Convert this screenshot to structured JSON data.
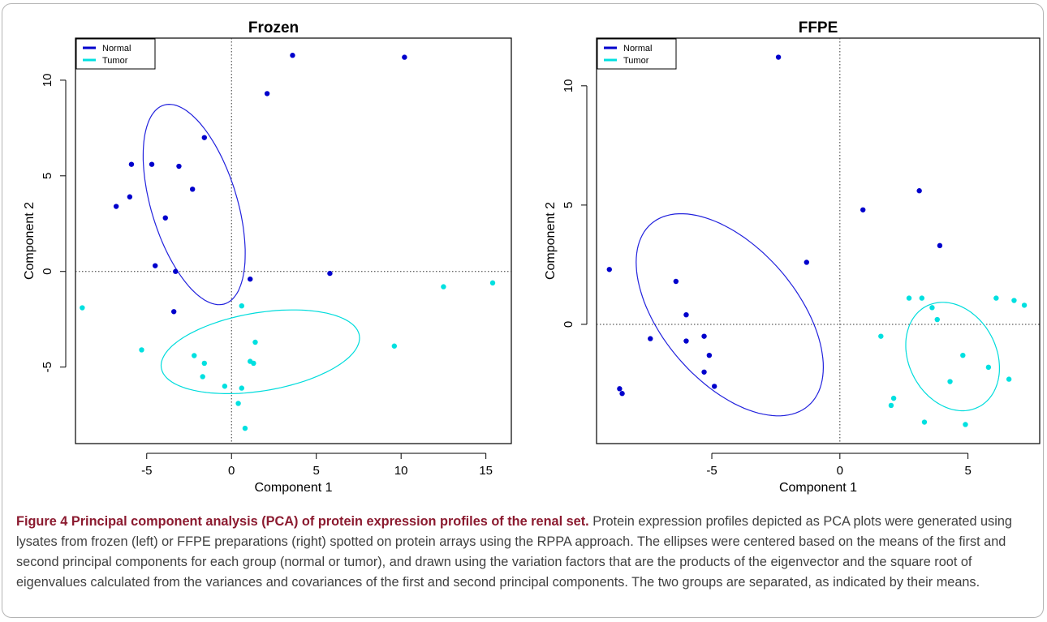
{
  "chart_data": [
    {
      "type": "scatter",
      "title": "Frozen",
      "xlabel": "Component 1",
      "ylabel": "Component 2",
      "xlim": [
        -9.2,
        16.5
      ],
      "ylim": [
        -9.0,
        12.2
      ],
      "xticks": [
        -5,
        0,
        5,
        10,
        15
      ],
      "yticks": [
        -5,
        0,
        5,
        10
      ],
      "reference_lines": {
        "x": 0,
        "y": 0,
        "style": "dotted"
      },
      "legend": {
        "placement": "top-left",
        "entries": [
          "Normal",
          "Tumor"
        ]
      },
      "series": [
        {
          "name": "Normal",
          "color": "#0000cc",
          "points": [
            [
              3.6,
              11.3
            ],
            [
              10.2,
              11.2
            ],
            [
              2.1,
              9.3
            ],
            [
              -1.6,
              7.0
            ],
            [
              -5.9,
              5.6
            ],
            [
              -4.7,
              5.6
            ],
            [
              -3.1,
              5.5
            ],
            [
              -2.3,
              4.3
            ],
            [
              -6.0,
              3.9
            ],
            [
              -6.8,
              3.4
            ],
            [
              -3.9,
              2.8
            ],
            [
              -4.5,
              0.3
            ],
            [
              -3.3,
              0.0
            ],
            [
              1.1,
              -0.4
            ],
            [
              5.8,
              -0.1
            ],
            [
              -3.4,
              -2.1
            ]
          ]
        },
        {
          "name": "Tumor",
          "color": "#00e0e0",
          "points": [
            [
              -8.8,
              -1.9
            ],
            [
              -5.3,
              -4.1
            ],
            [
              -2.2,
              -4.4
            ],
            [
              -1.6,
              -4.8
            ],
            [
              -1.7,
              -5.5
            ],
            [
              0.6,
              -1.8
            ],
            [
              1.4,
              -3.7
            ],
            [
              1.1,
              -4.7
            ],
            [
              1.3,
              -4.8
            ],
            [
              -0.4,
              -6.0
            ],
            [
              0.6,
              -6.1
            ],
            [
              0.4,
              -6.9
            ],
            [
              0.8,
              -8.2
            ],
            [
              9.6,
              -3.9
            ],
            [
              12.5,
              -0.8
            ],
            [
              15.4,
              -0.6
            ]
          ]
        }
      ],
      "ellipses": [
        {
          "group": "Normal",
          "cx": -2.2,
          "cy": 3.5,
          "rx": 2.5,
          "ry": 5.5,
          "angle_deg": 20,
          "color": "#2222dd"
        },
        {
          "group": "Tumor",
          "cx": 1.7,
          "cy": -4.2,
          "rx": 5.9,
          "ry": 2.05,
          "angle_deg": 8,
          "color": "#00dcdc"
        }
      ]
    },
    {
      "type": "scatter",
      "title": "FFPE",
      "xlabel": "Component 1",
      "ylabel": "Component 2",
      "xlim": [
        -9.5,
        7.8
      ],
      "ylim": [
        -5.0,
        12.0
      ],
      "xticks": [
        -5,
        0,
        5
      ],
      "yticks": [
        0,
        5,
        10
      ],
      "reference_lines": {
        "x": 0,
        "y": 0,
        "style": "dotted"
      },
      "legend": {
        "placement": "top-left",
        "entries": [
          "Normal",
          "Tumor"
        ]
      },
      "series": [
        {
          "name": "Normal",
          "color": "#0000cc",
          "points": [
            [
              -2.4,
              11.2
            ],
            [
              3.1,
              5.6
            ],
            [
              0.9,
              4.8
            ],
            [
              3.9,
              3.3
            ],
            [
              -1.3,
              2.6
            ],
            [
              -9.0,
              2.3
            ],
            [
              -6.4,
              1.8
            ],
            [
              -6.0,
              0.4
            ],
            [
              -7.4,
              -0.6
            ],
            [
              -6.0,
              -0.7
            ],
            [
              -5.3,
              -0.5
            ],
            [
              -5.1,
              -1.3
            ],
            [
              -5.3,
              -2.0
            ],
            [
              -4.9,
              -2.6
            ],
            [
              -8.6,
              -2.7
            ],
            [
              -8.5,
              -2.9
            ]
          ]
        },
        {
          "name": "Tumor",
          "color": "#00e0e0",
          "points": [
            [
              2.7,
              1.1
            ],
            [
              3.2,
              1.1
            ],
            [
              3.6,
              0.7
            ],
            [
              3.8,
              0.2
            ],
            [
              6.1,
              1.1
            ],
            [
              6.8,
              1.0
            ],
            [
              7.2,
              0.8
            ],
            [
              1.6,
              -0.5
            ],
            [
              4.8,
              -1.3
            ],
            [
              5.8,
              -1.8
            ],
            [
              6.6,
              -2.3
            ],
            [
              4.3,
              -2.4
            ],
            [
              2.1,
              -3.1
            ],
            [
              2.0,
              -3.4
            ],
            [
              3.3,
              -4.1
            ],
            [
              4.9,
              -4.2
            ]
          ]
        }
      ],
      "ellipses": [
        {
          "group": "Normal",
          "cx": -4.3,
          "cy": 0.4,
          "rx": 2.7,
          "ry": 4.9,
          "angle_deg": 37,
          "color": "#2222dd"
        },
        {
          "group": "Tumor",
          "cx": 4.4,
          "cy": -1.35,
          "rx": 1.73,
          "ry": 2.35,
          "angle_deg": 22,
          "color": "#00dcdc"
        }
      ]
    }
  ],
  "caption": {
    "title": "Figure 4 Principal component analysis (PCA) of protein expression profiles of the renal set.",
    "body": "Protein expression profiles depicted as PCA plots were generated using lysates from frozen (left) or FFPE preparations (right) spotted on protein arrays using the RPPA approach. The ellipses were centered based on the means of the first and second principal components for each group (normal or tumor), and drawn using the variation factors that are the products of the eigenvector and the square root of eigenvalues calculated from the variances and covariances of the first and second principal components. The two groups are separated, as indicated by their means."
  }
}
